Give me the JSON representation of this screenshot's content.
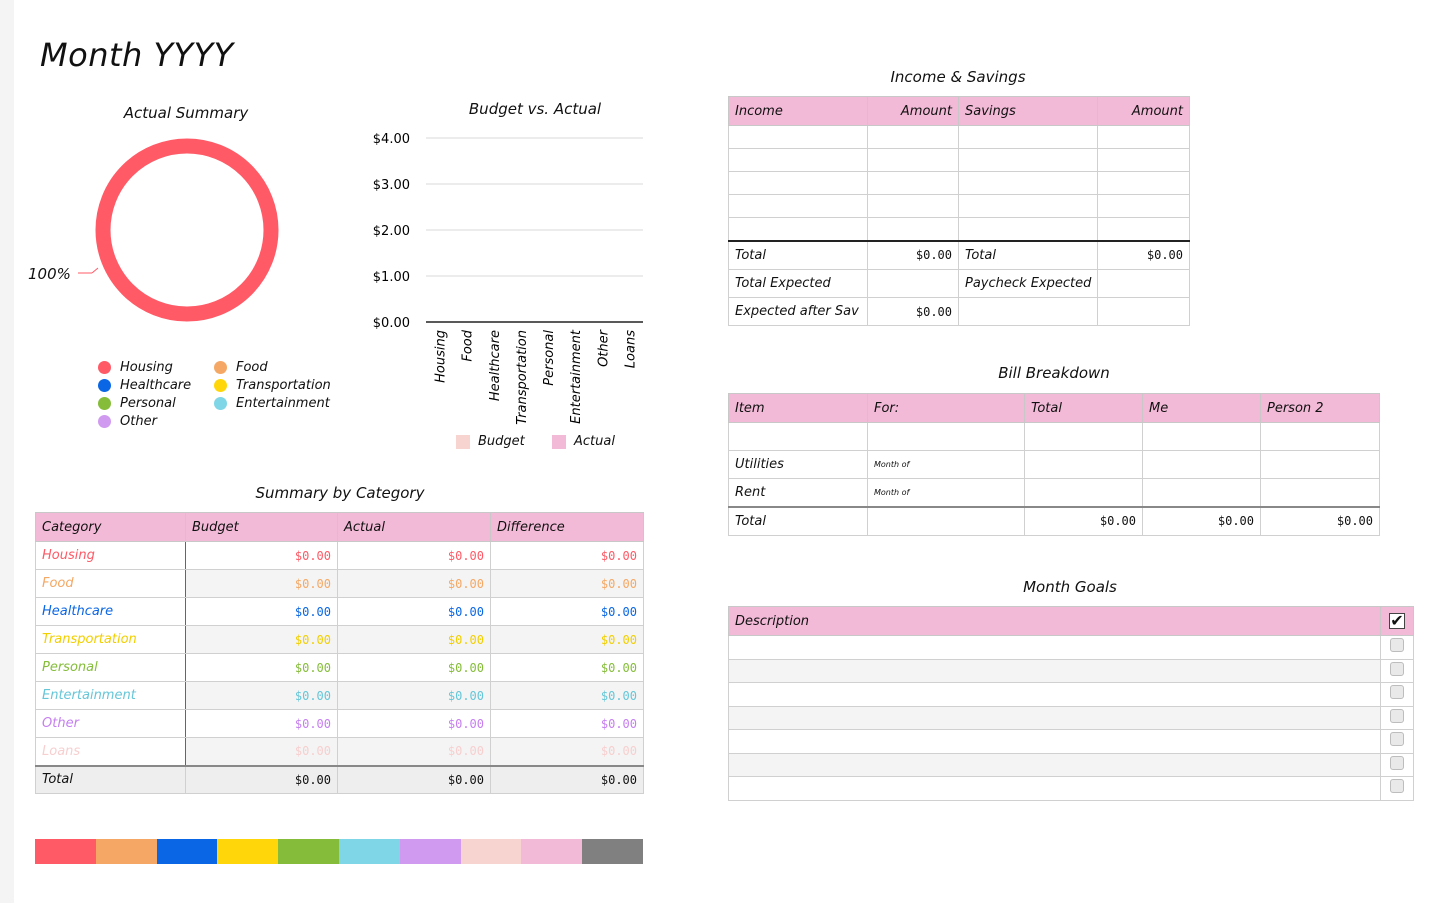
{
  "page": {
    "title": "Month YYYY"
  },
  "actual_summary": {
    "title": "Actual Summary",
    "percent_label": "100%",
    "legend": [
      {
        "label": "Housing",
        "color": "#ff5a66"
      },
      {
        "label": "Food",
        "color": "#f5a865"
      },
      {
        "label": "Healthcare",
        "color": "#0a66e4"
      },
      {
        "label": "Transportation",
        "color": "#ffd60a"
      },
      {
        "label": "Personal",
        "color": "#85bd3a"
      },
      {
        "label": "Entertainment",
        "color": "#7fd6e6"
      },
      {
        "label": "Other",
        "color": "#d09af0"
      }
    ]
  },
  "budget_vs_actual": {
    "title": "Budget vs. Actual"
  },
  "chart_data": {
    "type": "bar",
    "title": "Budget vs. Actual",
    "categories": [
      "Housing",
      "Food",
      "Healthcare",
      "Transportation",
      "Personal",
      "Entertainment",
      "Other",
      "Loans"
    ],
    "series": [
      {
        "name": "Budget",
        "color": "#f7cfcf",
        "values": [
          0,
          0,
          0,
          0,
          0,
          0,
          0,
          0
        ]
      },
      {
        "name": "Actual",
        "color": "#f3bad8",
        "values": [
          0,
          0,
          0,
          0,
          0,
          0,
          0,
          0
        ]
      }
    ],
    "y_ticks": [
      "$4.00",
      "$3.00",
      "$2.00",
      "$1.00",
      "$0.00"
    ],
    "ylim": [
      0,
      4
    ],
    "grid": true,
    "legend_position": "bottom"
  },
  "summary_by_category": {
    "title": "Summary by Category",
    "headers": [
      "Category",
      "Budget",
      "Actual",
      "Difference"
    ],
    "rows": [
      {
        "category": "Housing",
        "budget": "$0.00",
        "actual": "$0.00",
        "difference": "$0.00",
        "color": "#ff5a66"
      },
      {
        "category": "Food",
        "budget": "$0.00",
        "actual": "$0.00",
        "difference": "$0.00",
        "color": "#f5a865"
      },
      {
        "category": "Healthcare",
        "budget": "$0.00",
        "actual": "$0.00",
        "difference": "$0.00",
        "color": "#0a66e4"
      },
      {
        "category": "Transportation",
        "budget": "$0.00",
        "actual": "$0.00",
        "difference": "$0.00",
        "color": "#f2cf00"
      },
      {
        "category": "Personal",
        "budget": "$0.00",
        "actual": "$0.00",
        "difference": "$0.00",
        "color": "#85bd3a"
      },
      {
        "category": "Entertainment",
        "budget": "$0.00",
        "actual": "$0.00",
        "difference": "$0.00",
        "color": "#66c6d8"
      },
      {
        "category": "Other",
        "budget": "$0.00",
        "actual": "$0.00",
        "difference": "$0.00",
        "color": "#c67ff0"
      },
      {
        "category": "Loans",
        "budget": "$0.00",
        "actual": "$0.00",
        "difference": "$0.00",
        "color": "#f7cfcf"
      }
    ],
    "total": {
      "label": "Total",
      "budget": "$0.00",
      "actual": "$0.00",
      "difference": "$0.00"
    }
  },
  "palette": [
    "#ff5a66",
    "#f5a865",
    "#0a66e4",
    "#ffd60a",
    "#85bd3a",
    "#7fd6e6",
    "#d09af0",
    "#f7d4d0",
    "#f3bad8",
    "#808080"
  ],
  "income_savings": {
    "title": "Income & Savings",
    "headers": [
      "Income",
      "Amount",
      "Savings",
      "Amount"
    ],
    "total_label_left": "Total",
    "total_left": "$0.00",
    "total_label_right": "Total",
    "total_right": "$0.00",
    "total_expected": "Total Expected",
    "paycheck_expected": "Paycheck Expected",
    "expected_after_sav": "Expected after Sav",
    "expected_after_sav_value": "$0.00"
  },
  "bill_breakdown": {
    "title": "Bill Breakdown",
    "headers": [
      "Item",
      "For:",
      "Total",
      "Me",
      "Person 2"
    ],
    "rows": [
      {
        "item": "Utilities",
        "for": "Month of"
      },
      {
        "item": "Rent",
        "for": "Month of"
      }
    ],
    "total_label": "Total",
    "total_total": "$0.00",
    "total_me": "$0.00",
    "total_person2": "$0.00"
  },
  "month_goals": {
    "title": "Month Goals",
    "header": "Description",
    "header_check": "✔"
  }
}
